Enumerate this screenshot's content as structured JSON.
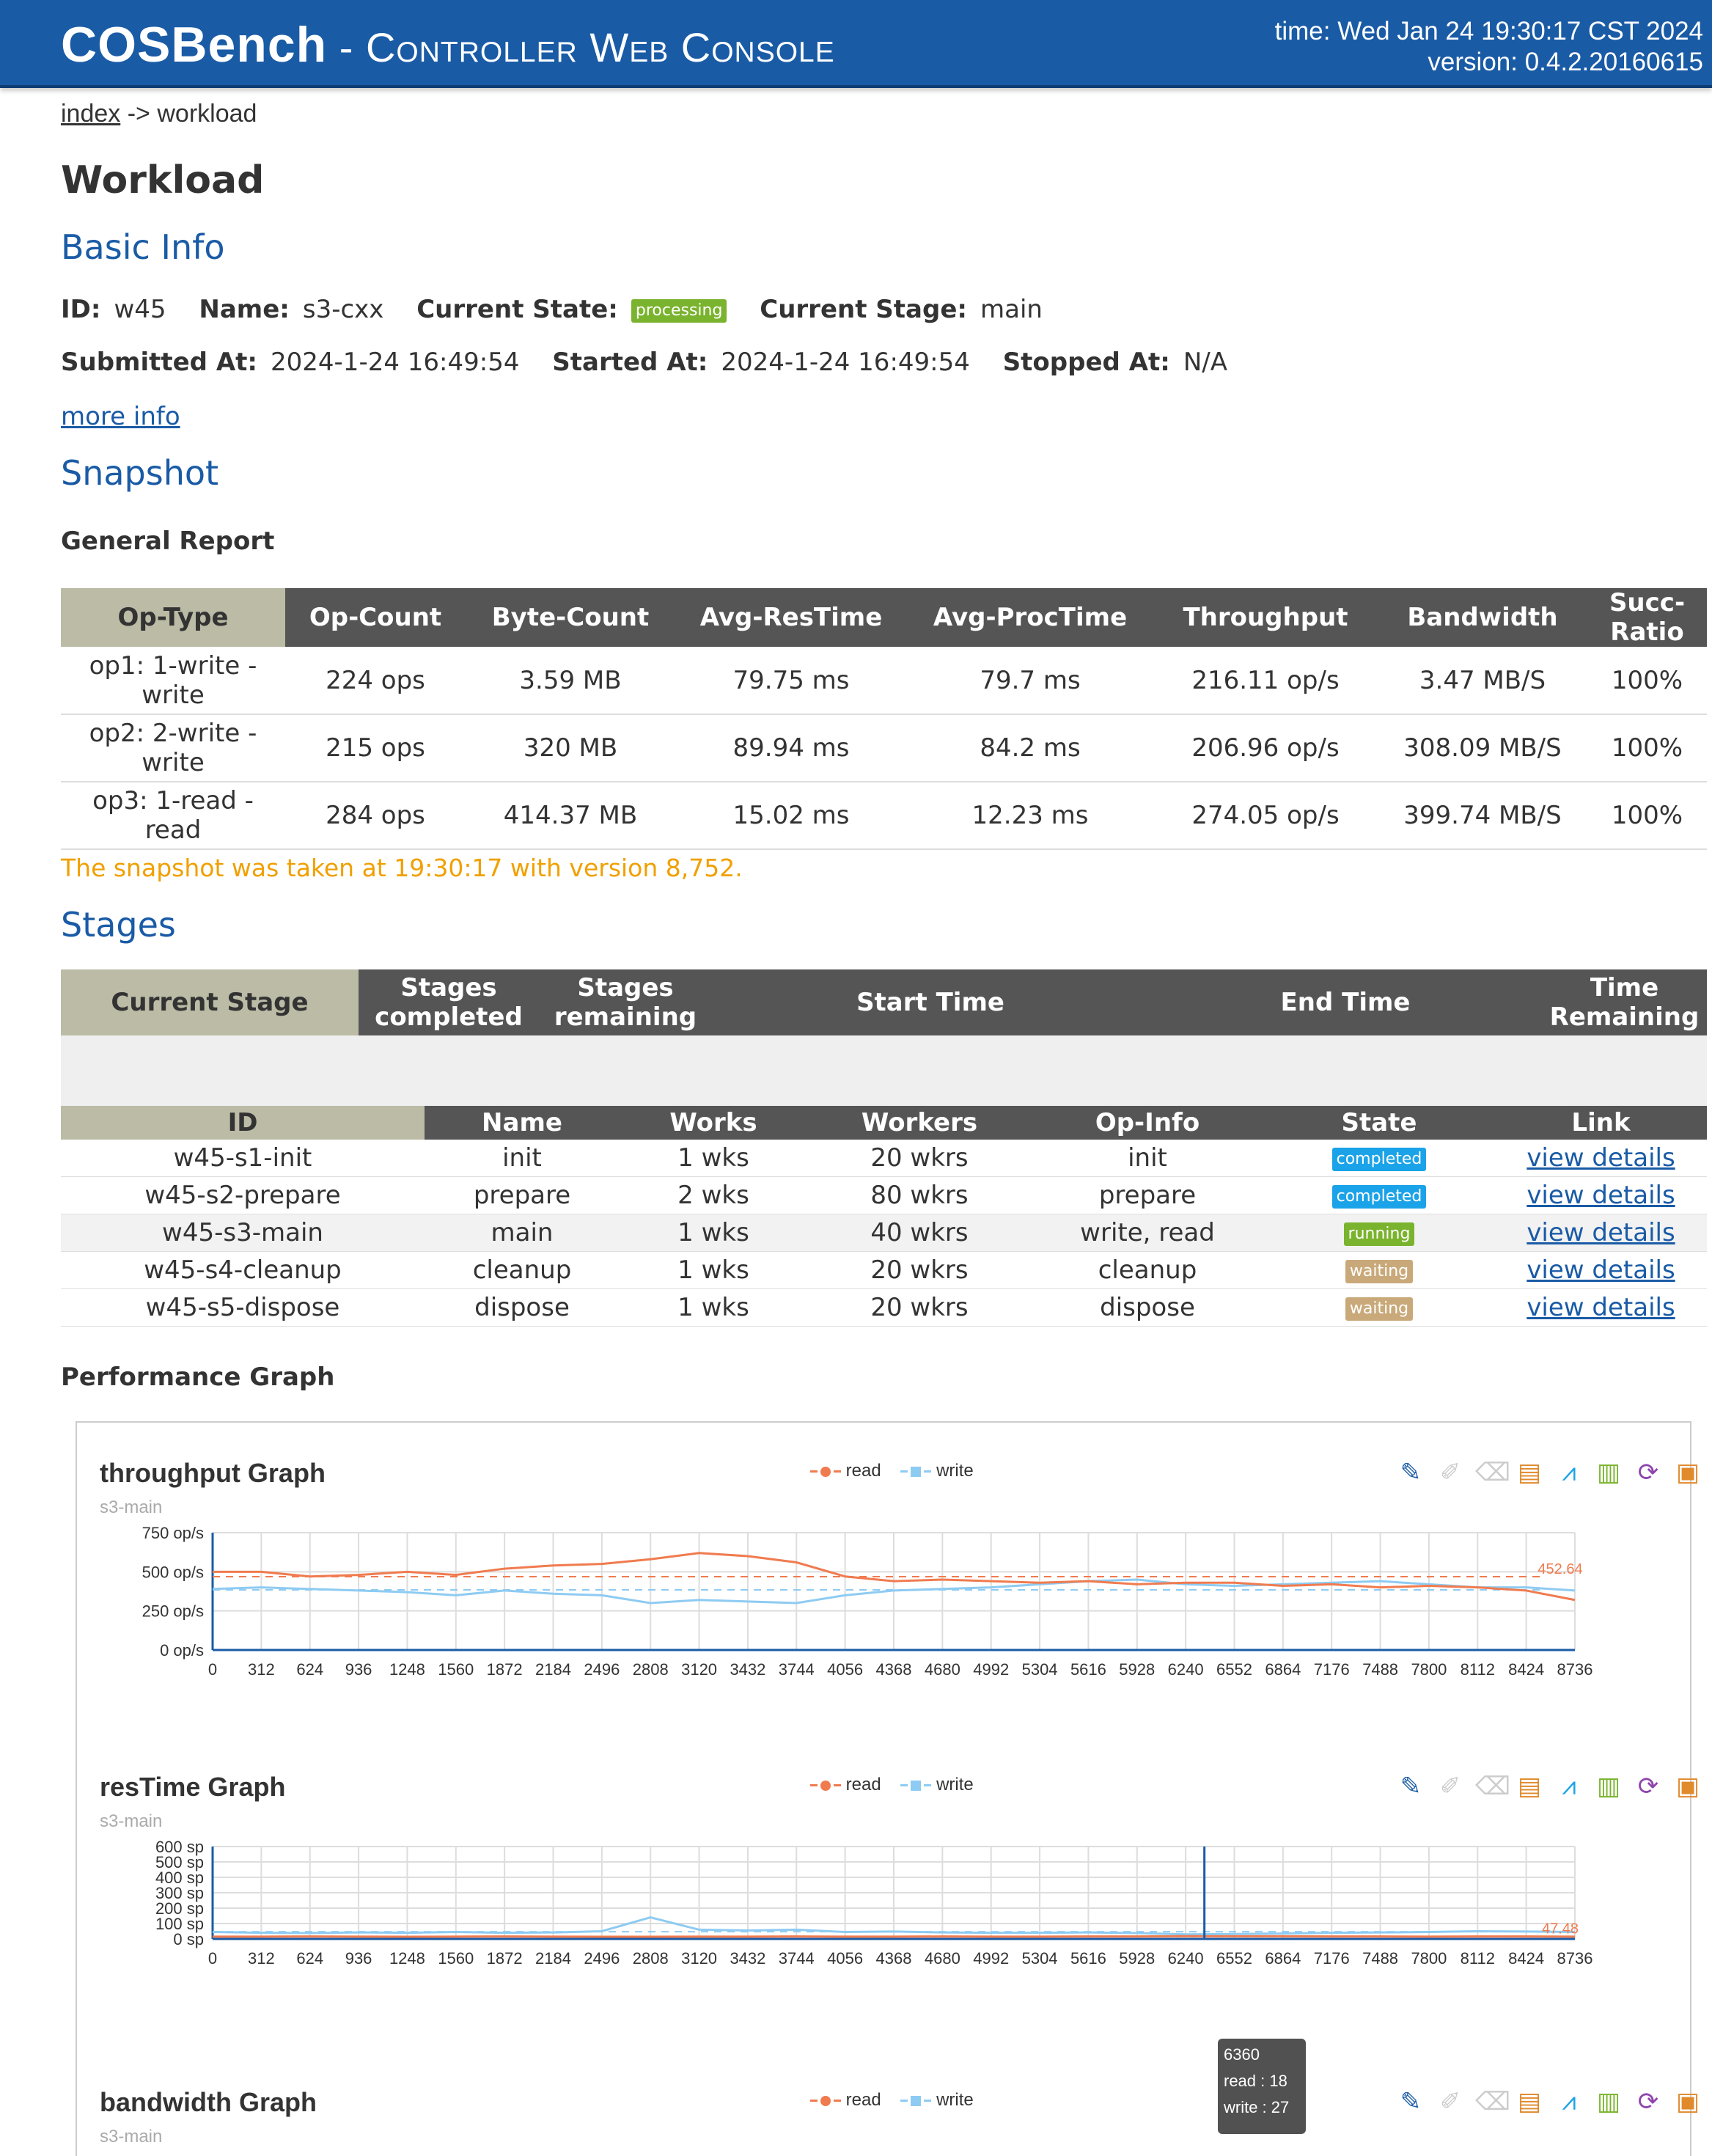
{
  "header": {
    "brand_main": "COSBench",
    "brand_sub": " - Controller Web Console",
    "time": "time: Wed Jan 24 19:30:17 CST 2024",
    "version": "version: 0.4.2.20160615"
  },
  "breadcrumb": {
    "index": "index",
    "sep": " -> ",
    "current": "workload"
  },
  "page_title": "Workload",
  "basic_info": {
    "heading": "Basic Info",
    "id_label": "ID:",
    "id": "w45",
    "name_label": "Name:",
    "name": "s3-cxx",
    "state_label": "Current State:",
    "state": "processing",
    "stage_label": "Current Stage:",
    "stage": "main",
    "submitted_label": "Submitted At:",
    "submitted": "2024-1-24 16:49:54",
    "started_label": "Started At:",
    "started": "2024-1-24 16:49:54",
    "stopped_label": "Stopped At:",
    "stopped": "N/A",
    "more_info": "more info"
  },
  "snapshot": {
    "heading": "Snapshot",
    "general_report": "General Report",
    "columns": [
      "Op-Type",
      "Op-Count",
      "Byte-Count",
      "Avg-ResTime",
      "Avg-ProcTime",
      "Throughput",
      "Bandwidth",
      "Succ-Ratio"
    ],
    "rows": [
      {
        "op1": "op1: 1-write -",
        "op2": "write",
        "count": "224 ops",
        "bytes": "3.59 MB",
        "res": "79.75 ms",
        "proc": "79.7 ms",
        "tp": "216.11 op/s",
        "bw": "3.47 MB/S",
        "succ": "100%"
      },
      {
        "op1": "op2: 2-write -",
        "op2": "write",
        "count": "215 ops",
        "bytes": "320 MB",
        "res": "89.94 ms",
        "proc": "84.2 ms",
        "tp": "206.96 op/s",
        "bw": "308.09 MB/S",
        "succ": "100%"
      },
      {
        "op1": "op3: 1-read -",
        "op2": "read",
        "count": "284 ops",
        "bytes": "414.37 MB",
        "res": "15.02 ms",
        "proc": "12.23 ms",
        "tp": "274.05 op/s",
        "bw": "399.74 MB/S",
        "succ": "100%"
      }
    ],
    "note": "The snapshot was taken at 19:30:17 with version 8,752."
  },
  "stages": {
    "heading": "Stages",
    "summary_cols": {
      "current": "Current Stage",
      "completed_1": "Stages",
      "completed_2": "completed",
      "remaining_1": "Stages",
      "remaining_2": "remaining",
      "start": "Start Time",
      "end": "End Time",
      "time_rem_1": "Time",
      "time_rem_2": "Remaining"
    },
    "columns": [
      "ID",
      "Name",
      "Works",
      "Workers",
      "Op-Info",
      "State",
      "Link"
    ],
    "rows": [
      {
        "id": "w45-s1-init",
        "name": "init",
        "works": "1 wks",
        "workers": "20 wkrs",
        "opinfo": "init",
        "state": "completed",
        "link": "view details"
      },
      {
        "id": "w45-s2-prepare",
        "name": "prepare",
        "works": "2 wks",
        "workers": "80 wkrs",
        "opinfo": "prepare",
        "state": "completed",
        "link": "view details"
      },
      {
        "id": "w45-s3-main",
        "name": "main",
        "works": "1 wks",
        "workers": "40 wkrs",
        "opinfo": "write, read",
        "state": "running",
        "link": "view details"
      },
      {
        "id": "w45-s4-cleanup",
        "name": "cleanup",
        "works": "1 wks",
        "workers": "20 wkrs",
        "opinfo": "cleanup",
        "state": "waiting",
        "link": "view details"
      },
      {
        "id": "w45-s5-dispose",
        "name": "dispose",
        "works": "1 wks",
        "workers": "20 wkrs",
        "opinfo": "dispose",
        "state": "waiting",
        "link": "view details"
      }
    ]
  },
  "perf": {
    "heading": "Performance Graph",
    "legend_read": "read",
    "legend_write": "write",
    "colors": {
      "read": "#f07b4f",
      "write": "#8ecbf2",
      "axis": "#1a5ba6"
    },
    "toolbox_icons": [
      "mark-icon",
      "mark-undo-icon",
      "mark-clear-icon",
      "data-view-icon",
      "line-chart-icon",
      "bar-chart-icon",
      "restore-icon",
      "save-image-icon"
    ]
  },
  "chart_data": [
    {
      "type": "line",
      "title": "throughput Graph",
      "subtitle": "s3-main",
      "x_ticks": [
        0,
        312,
        624,
        936,
        1248,
        1560,
        1872,
        2184,
        2496,
        2808,
        3120,
        3432,
        3744,
        4056,
        4368,
        4680,
        4992,
        5304,
        5616,
        5928,
        6240,
        6552,
        6864,
        7176,
        7488,
        7800,
        8112,
        8424,
        8736
      ],
      "y_ticks": [
        "0 op/s",
        "250 op/s",
        "500 op/s",
        "750 op/s"
      ],
      "ylim": [
        0,
        750
      ],
      "markline_label": "452.64",
      "series": [
        {
          "name": "read",
          "x": [
            0,
            312,
            624,
            936,
            1248,
            1560,
            1872,
            2184,
            2496,
            2808,
            3120,
            3432,
            3744,
            4056,
            4368,
            4680,
            4992,
            5304,
            5616,
            5928,
            6240,
            6552,
            6864,
            7176,
            7488,
            7800,
            8112,
            8424,
            8736
          ],
          "values": [
            500,
            500,
            470,
            480,
            500,
            480,
            520,
            540,
            550,
            580,
            620,
            600,
            560,
            470,
            440,
            450,
            440,
            430,
            440,
            420,
            430,
            430,
            410,
            420,
            400,
            410,
            400,
            380,
            320
          ]
        },
        {
          "name": "write",
          "x": [
            0,
            312,
            624,
            936,
            1248,
            1560,
            1872,
            2184,
            2496,
            2808,
            3120,
            3432,
            3744,
            4056,
            4368,
            4680,
            4992,
            5304,
            5616,
            5928,
            6240,
            6552,
            6864,
            7176,
            7488,
            7800,
            8112,
            8424,
            8736
          ],
          "values": [
            390,
            400,
            390,
            380,
            370,
            350,
            380,
            360,
            350,
            300,
            320,
            310,
            300,
            350,
            380,
            390,
            400,
            420,
            440,
            450,
            420,
            410,
            420,
            430,
            440,
            420,
            400,
            400,
            380
          ]
        }
      ]
    },
    {
      "type": "line",
      "title": "resTime Graph",
      "subtitle": "s3-main",
      "x_ticks": [
        0,
        312,
        624,
        936,
        1248,
        1560,
        1872,
        2184,
        2496,
        2808,
        3120,
        3432,
        3744,
        4056,
        4368,
        4680,
        4992,
        5304,
        5616,
        5928,
        6240,
        6552,
        6864,
        7176,
        7488,
        7800,
        8112,
        8424,
        8736
      ],
      "y_ticks": [
        "0 sp",
        "100 sp",
        "200 sp",
        "300 sp",
        "400 sp",
        "500 sp",
        "600 sp"
      ],
      "ylim": [
        0,
        600
      ],
      "markline_label": "47.48",
      "tooltip": {
        "x": "6360",
        "read": "read : 18",
        "write": "write : 27"
      },
      "series": [
        {
          "name": "read",
          "x": [
            0,
            312,
            624,
            936,
            1248,
            1560,
            1872,
            2184,
            2496,
            2808,
            3120,
            3432,
            3744,
            4056,
            4368,
            4680,
            4992,
            5304,
            5616,
            5928,
            6240,
            6552,
            6864,
            7176,
            7488,
            7800,
            8112,
            8424,
            8736
          ],
          "values": [
            15,
            15,
            16,
            15,
            14,
            15,
            16,
            15,
            14,
            14,
            15,
            15,
            16,
            15,
            15,
            16,
            15,
            15,
            16,
            16,
            18,
            17,
            17,
            16,
            16,
            15,
            16,
            16,
            15
          ]
        },
        {
          "name": "write",
          "x": [
            0,
            312,
            624,
            936,
            1248,
            1560,
            1872,
            2184,
            2496,
            2808,
            3120,
            3432,
            3744,
            4056,
            4368,
            4680,
            4992,
            5304,
            5616,
            5928,
            6240,
            6552,
            6864,
            7176,
            7488,
            7800,
            8112,
            8424,
            8736
          ],
          "values": [
            45,
            40,
            38,
            42,
            40,
            45,
            40,
            42,
            50,
            140,
            60,
            55,
            60,
            45,
            48,
            42,
            40,
            40,
            42,
            38,
            30,
            32,
            35,
            40,
            42,
            45,
            50,
            48,
            45
          ]
        }
      ]
    },
    {
      "type": "line",
      "title": "bandwidth Graph",
      "subtitle": "s3-main",
      "series": [
        {
          "name": "read",
          "values": []
        },
        {
          "name": "write",
          "values": []
        }
      ]
    }
  ]
}
